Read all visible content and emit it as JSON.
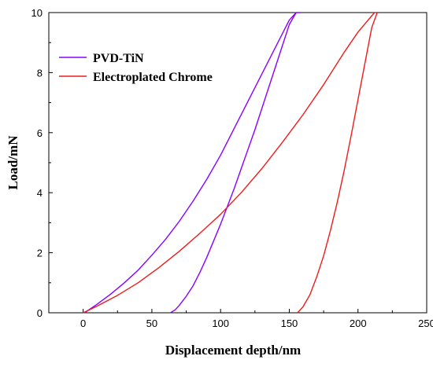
{
  "chart_data": {
    "type": "line",
    "title": "",
    "xlabel": "Displacement depth/nm",
    "ylabel": "Load/mN",
    "xlim": [
      -25,
      250
    ],
    "ylim": [
      0,
      10
    ],
    "xticks": [
      0,
      50,
      100,
      150,
      200,
      250
    ],
    "yticks": [
      0,
      2,
      4,
      6,
      8,
      10
    ],
    "grid": false,
    "legend_position": "top-left",
    "series": [
      {
        "name": "PVD-TiN",
        "color": "#8a00ff",
        "loading": {
          "x": [
            1,
            10,
            20,
            30,
            40,
            50,
            60,
            70,
            80,
            90,
            100,
            110,
            120,
            130,
            140,
            150,
            155
          ],
          "y": [
            0,
            0.28,
            0.62,
            1.0,
            1.42,
            1.92,
            2.45,
            3.05,
            3.72,
            4.45,
            5.25,
            6.15,
            7.05,
            7.95,
            8.85,
            9.75,
            10.0
          ]
        },
        "unloading": {
          "x": [
            63.5,
            67,
            70,
            75,
            80,
            85,
            90,
            95,
            100,
            105,
            110,
            115,
            120,
            125,
            130,
            135,
            140,
            145,
            150,
            155,
            158
          ],
          "y": [
            0,
            0.1,
            0.25,
            0.55,
            0.9,
            1.35,
            1.85,
            2.4,
            2.95,
            3.55,
            4.15,
            4.8,
            5.45,
            6.1,
            6.8,
            7.5,
            8.2,
            8.9,
            9.6,
            10.0,
            10.0
          ]
        }
      },
      {
        "name": "Electroplated Chrome",
        "color": "#ee1c1c",
        "loading": {
          "x": [
            0,
            10,
            25,
            40,
            55,
            70,
            85,
            100,
            115,
            130,
            145,
            160,
            175,
            190,
            200,
            212
          ],
          "y": [
            0,
            0.22,
            0.58,
            1.0,
            1.5,
            2.05,
            2.65,
            3.28,
            4.0,
            4.8,
            5.68,
            6.6,
            7.6,
            8.68,
            9.35,
            10.0
          ]
        },
        "unloading": {
          "x": [
            156,
            160,
            165,
            170,
            175,
            180,
            185,
            190,
            195,
            200,
            205,
            210,
            214
          ],
          "y": [
            0,
            0.2,
            0.6,
            1.2,
            1.9,
            2.75,
            3.7,
            4.75,
            5.9,
            7.1,
            8.3,
            9.5,
            10.0
          ]
        }
      }
    ]
  }
}
